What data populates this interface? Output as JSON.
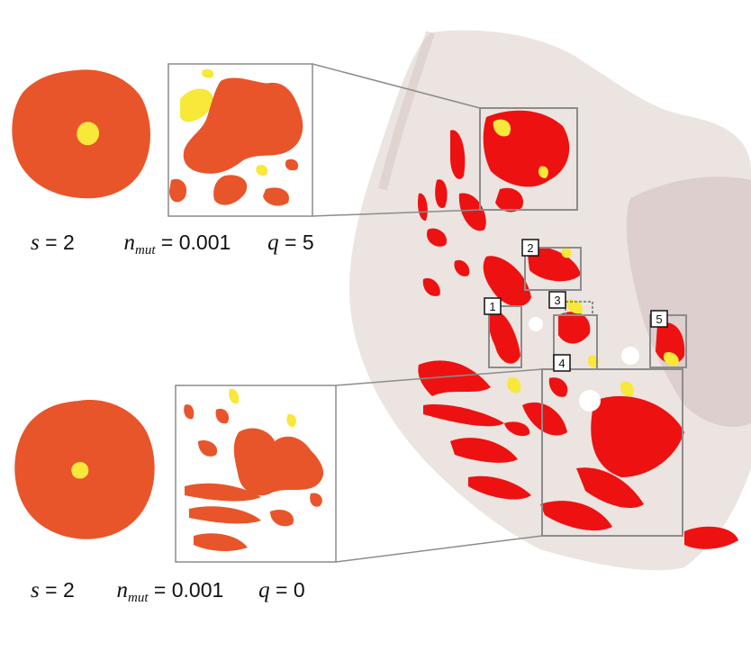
{
  "colors": {
    "tumor": "#e8552a",
    "mutant": "#f7e83a",
    "tissue_red": "#ee1111",
    "tissue_bg": "#ece6e2",
    "box_gray": "#8c8c8c"
  },
  "panels": [
    {
      "s_label": "s",
      "s_value": "2",
      "nmut_label": "n",
      "nmut_sub": "mut",
      "nmut_value": "0.001",
      "q_label": "q",
      "q_value": "5"
    },
    {
      "s_label": "s",
      "s_value": "2",
      "nmut_label": "n",
      "nmut_sub": "mut",
      "nmut_value": "0.001",
      "q_label": "q",
      "q_value": "0"
    }
  ],
  "region_labels": [
    "1",
    "2",
    "3",
    "4",
    "5"
  ]
}
